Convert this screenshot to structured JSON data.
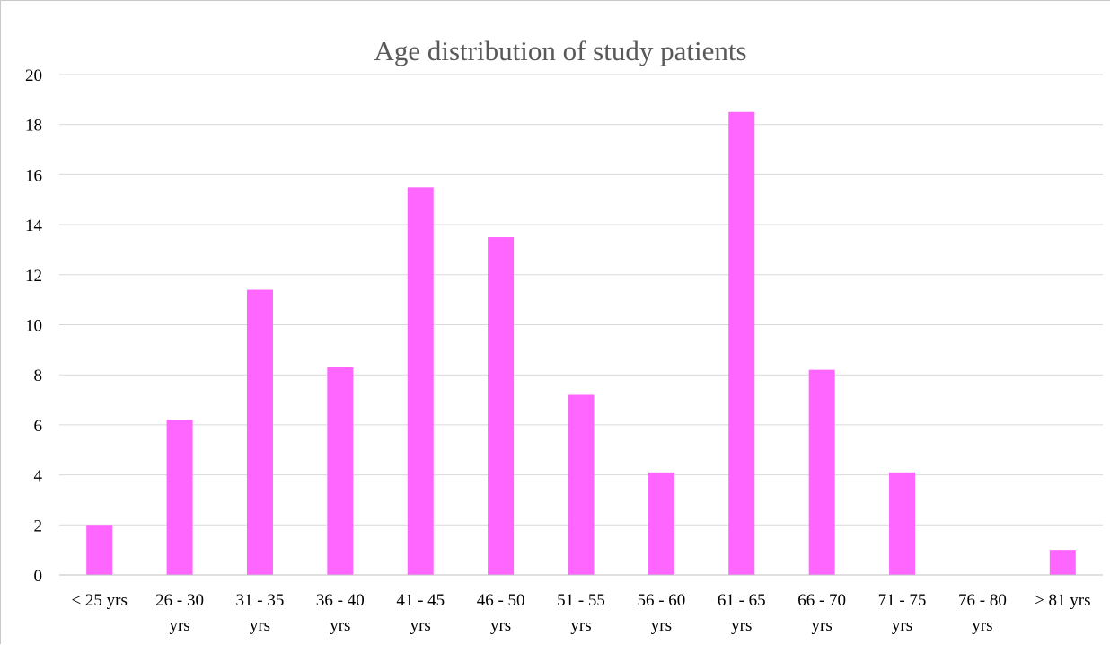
{
  "chart_data": {
    "type": "bar",
    "title": "Age distribution of study patients",
    "xlabel": "",
    "ylabel": "",
    "categories": [
      [
        "< 25 yrs"
      ],
      [
        "26 - 30",
        "yrs"
      ],
      [
        "31 - 35",
        "yrs"
      ],
      [
        "36 - 40",
        "yrs"
      ],
      [
        "41 - 45",
        "yrs"
      ],
      [
        "46 - 50",
        "yrs"
      ],
      [
        "51 - 55",
        "yrs"
      ],
      [
        "56 - 60",
        "yrs"
      ],
      [
        "61 - 65",
        "yrs"
      ],
      [
        "66 - 70",
        "yrs"
      ],
      [
        "71 - 75",
        "yrs"
      ],
      [
        "76 - 80",
        "yrs"
      ],
      [
        "> 81 yrs"
      ]
    ],
    "values": [
      2,
      6.2,
      11.4,
      8.3,
      15.5,
      13.5,
      7.2,
      4.1,
      18.5,
      8.2,
      4.1,
      0,
      1
    ],
    "ylim": [
      0,
      20
    ],
    "yticks": [
      0,
      2,
      4,
      6,
      8,
      10,
      12,
      14,
      16,
      18,
      20
    ],
    "grid": true,
    "legend": "none",
    "bar_color": "#FF66FF"
  }
}
